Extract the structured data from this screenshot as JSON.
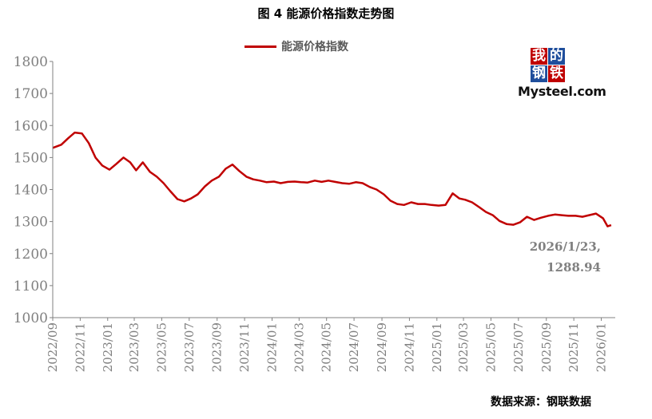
{
  "title": "图 4  能源价格指数走势图",
  "legend": [
    "能源价格指数"
  ],
  "logo": {
    "chars": [
      "我",
      "的",
      "钢",
      "铁"
    ],
    "text": "Mysteel.com"
  },
  "annotation": {
    "line1": "2026/1/23,",
    "line2": "1288.94"
  },
  "source": "数据来源：钢联数据",
  "colors": {
    "series": "#c00000",
    "axis": "#808080",
    "tick_text": "#808080",
    "logo_red": "#c00000",
    "logo_blue": "#1f4e9c"
  },
  "chart_data": {
    "type": "line",
    "title": "图 4  能源价格指数走势图",
    "xlabel": "",
    "ylabel": "",
    "ylim": [
      1000,
      1800
    ],
    "yticks": [
      "1000",
      "1100",
      "1200",
      "1300",
      "1400",
      "1500",
      "1600",
      "1700",
      "1800"
    ],
    "xlim": [
      "2022-09-01",
      "2026-02-01"
    ],
    "xticks": [
      "2022/09",
      "2022/11",
      "2023/01",
      "2023/03",
      "2023/05",
      "2023/07",
      "2023/09",
      "2023/11",
      "2024/01",
      "2024/03",
      "2024/05",
      "2024/07",
      "2024/09",
      "2024/11",
      "2025/01",
      "2025/03",
      "2025/05",
      "2025/07",
      "2025/09",
      "2025/11",
      "2026/01"
    ],
    "grid": false,
    "legend_position": "top-center",
    "series": [
      {
        "name": "能源价格指数",
        "x": [
          "2022-09-01",
          "2022-09-20",
          "2022-10-05",
          "2022-10-20",
          "2022-11-05",
          "2022-11-20",
          "2022-12-05",
          "2022-12-20",
          "2023-01-05",
          "2023-01-20",
          "2023-02-05",
          "2023-02-20",
          "2023-03-05",
          "2023-03-20",
          "2023-04-05",
          "2023-04-20",
          "2023-05-05",
          "2023-05-20",
          "2023-06-05",
          "2023-06-20",
          "2023-07-05",
          "2023-07-20",
          "2023-08-05",
          "2023-08-20",
          "2023-09-05",
          "2023-09-20",
          "2023-10-05",
          "2023-10-20",
          "2023-11-05",
          "2023-11-20",
          "2023-12-05",
          "2023-12-20",
          "2024-01-05",
          "2024-01-20",
          "2024-02-05",
          "2024-02-20",
          "2024-03-05",
          "2024-03-20",
          "2024-04-05",
          "2024-04-20",
          "2024-05-05",
          "2024-05-20",
          "2024-06-05",
          "2024-06-20",
          "2024-07-05",
          "2024-07-20",
          "2024-08-05",
          "2024-08-20",
          "2024-09-05",
          "2024-09-20",
          "2024-10-05",
          "2024-10-20",
          "2024-11-05",
          "2024-11-20",
          "2024-12-05",
          "2024-12-20",
          "2025-01-05",
          "2025-01-20",
          "2025-02-05",
          "2025-02-20",
          "2025-03-05",
          "2025-03-20",
          "2025-04-05",
          "2025-04-20",
          "2025-05-05",
          "2025-05-20",
          "2025-06-05",
          "2025-06-20",
          "2025-07-05",
          "2025-07-20",
          "2025-08-05",
          "2025-08-20",
          "2025-09-05",
          "2025-09-20",
          "2025-10-05",
          "2025-10-20",
          "2025-11-05",
          "2025-11-20",
          "2025-12-05",
          "2025-12-20",
          "2026-01-05",
          "2026-01-15",
          "2026-01-23"
        ],
        "values": [
          1530,
          1540,
          1560,
          1578,
          1575,
          1545,
          1500,
          1475,
          1462,
          1480,
          1500,
          1485,
          1460,
          1485,
          1455,
          1440,
          1420,
          1395,
          1370,
          1363,
          1372,
          1385,
          1410,
          1428,
          1440,
          1465,
          1478,
          1458,
          1440,
          1432,
          1428,
          1423,
          1425,
          1420,
          1424,
          1425,
          1423,
          1422,
          1428,
          1424,
          1428,
          1424,
          1420,
          1418,
          1423,
          1420,
          1408,
          1400,
          1385,
          1365,
          1355,
          1352,
          1360,
          1355,
          1355,
          1352,
          1350,
          1352,
          1388,
          1372,
          1368,
          1360,
          1345,
          1330,
          1320,
          1302,
          1292,
          1290,
          1298,
          1315,
          1305,
          1312,
          1318,
          1322,
          1320,
          1318,
          1318,
          1315,
          1320,
          1325,
          1310,
          1285,
          1288.94
        ]
      }
    ]
  }
}
